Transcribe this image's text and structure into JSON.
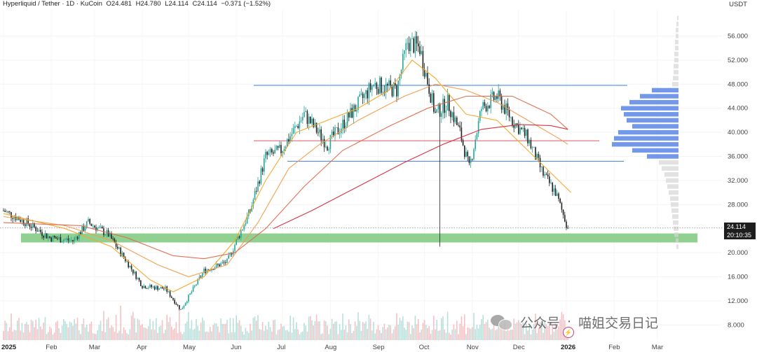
{
  "header": {
    "symbol": "Hyperliquid / Tether · 1D · KuCoin",
    "open": "O24.481",
    "high": "H24.780",
    "low": "L24.114",
    "close": "C24.114",
    "change": "−0.371 (−1.52%)"
  },
  "price_axis": {
    "unit": "USDT"
  },
  "last_price": {
    "price": "24.114",
    "countdown": "20:10:35"
  },
  "watermark": {
    "text_left": "公众号",
    "separator": "·",
    "text_right": "喵姐交易日记"
  },
  "colors": {
    "up": "#26a69a",
    "down": "#222222",
    "ma_short": "#f5a623",
    "ma_mid": "#f29b4b",
    "ma_long": "#e06a4a",
    "ma_200": "#d8283a",
    "support_zone": "#7cc97e",
    "hline_blue": "#3d7fd9",
    "hline_red": "#e8545f",
    "volume_profile": "#5b86e5"
  },
  "chart_data": {
    "type": "candlestick",
    "x_ticks": [
      "2025",
      "Feb",
      "Mar",
      "Apr",
      "May",
      "Jun",
      "Jul",
      "Aug",
      "Sep",
      "Oct",
      "Nov",
      "Dec",
      "2026",
      "Feb",
      "Mar"
    ],
    "y_ticks": [
      "56.000",
      "52.000",
      "48.000",
      "44.000",
      "40.000",
      "36.000",
      "32.000",
      "28.000",
      "24.114",
      "20.000",
      "16.000",
      "12.000",
      "8.000"
    ],
    "ylim": [
      8,
      60
    ],
    "price_path_daily_close": [
      [
        0,
        27.0
      ],
      [
        15,
        25.0
      ],
      [
        30,
        22.5
      ],
      [
        45,
        22.0
      ],
      [
        55,
        25.0
      ],
      [
        68,
        23.0
      ],
      [
        80,
        18.5
      ],
      [
        90,
        14.5
      ],
      [
        105,
        14.0
      ],
      [
        115,
        10.5
      ],
      [
        130,
        17.0
      ],
      [
        145,
        18.5
      ],
      [
        160,
        27.0
      ],
      [
        170,
        36.0
      ],
      [
        180,
        37.0
      ],
      [
        195,
        43.0
      ],
      [
        210,
        38.0
      ],
      [
        225,
        43.0
      ],
      [
        240,
        48.0
      ],
      [
        255,
        47.0
      ],
      [
        262,
        55.0
      ],
      [
        270,
        54.0
      ],
      [
        280,
        43.0
      ],
      [
        288,
        45.0
      ],
      [
        296,
        40.0
      ],
      [
        302,
        34.0
      ],
      [
        310,
        44.0
      ],
      [
        320,
        46.0
      ],
      [
        330,
        42.0
      ],
      [
        340,
        39.0
      ],
      [
        350,
        33.0
      ],
      [
        358,
        30.0
      ],
      [
        366,
        24.1
      ]
    ],
    "wick_low_oct": {
      "day": 283,
      "price": 21.0
    },
    "horizontal_levels": [
      {
        "price": 47.8,
        "color": "blue"
      },
      {
        "price": 38.6,
        "color": "red"
      },
      {
        "price": 35.2,
        "color": "blue"
      }
    ],
    "support_zone": [
      21.7,
      23.2
    ],
    "moving_averages": [
      {
        "name": "",
        "color": "ma_short",
        "points": [
          [
            0,
            26.5
          ],
          [
            40,
            24
          ],
          [
            70,
            21
          ],
          [
            95,
            15.5
          ],
          [
            110,
            13.5
          ],
          [
            130,
            16
          ],
          [
            150,
            22
          ],
          [
            170,
            32
          ],
          [
            190,
            40
          ],
          [
            210,
            42
          ],
          [
            230,
            44
          ],
          [
            250,
            47
          ],
          [
            265,
            52
          ],
          [
            280,
            49
          ],
          [
            300,
            43
          ],
          [
            320,
            42
          ],
          [
            340,
            37
          ],
          [
            360,
            32
          ],
          [
            368,
            30
          ]
        ]
      },
      {
        "name": "",
        "color": "ma_mid",
        "points": [
          [
            0,
            26
          ],
          [
            40,
            24.5
          ],
          [
            70,
            22
          ],
          [
            100,
            18
          ],
          [
            120,
            16
          ],
          [
            145,
            18
          ],
          [
            165,
            25
          ],
          [
            185,
            34
          ],
          [
            205,
            38
          ],
          [
            230,
            42
          ],
          [
            260,
            46
          ],
          [
            280,
            48
          ],
          [
            300,
            47
          ],
          [
            320,
            45
          ],
          [
            340,
            42
          ],
          [
            360,
            39
          ],
          [
            366,
            38
          ]
        ]
      },
      {
        "name": "",
        "color": "ma_long",
        "points": [
          [
            0,
            25
          ],
          [
            50,
            24.5
          ],
          [
            80,
            22.5
          ],
          [
            110,
            19.5
          ],
          [
            130,
            19
          ],
          [
            150,
            20
          ],
          [
            170,
            24
          ],
          [
            195,
            31
          ],
          [
            220,
            37
          ],
          [
            250,
            41
          ],
          [
            275,
            44
          ],
          [
            300,
            46
          ],
          [
            330,
            46
          ],
          [
            355,
            43
          ],
          [
            366,
            40.5
          ]
        ]
      },
      {
        "name": "",
        "color": "ma_200",
        "points": [
          [
            175,
            24
          ],
          [
            200,
            27
          ],
          [
            230,
            31
          ],
          [
            260,
            35
          ],
          [
            285,
            38
          ],
          [
            310,
            40.5
          ],
          [
            335,
            41.3
          ],
          [
            355,
            41.1
          ],
          [
            366,
            40.5
          ]
        ]
      }
    ],
    "volume_profile": [
      [
        59,
        2
      ],
      [
        58,
        3
      ],
      [
        57,
        4
      ],
      [
        56,
        4
      ],
      [
        55,
        5
      ],
      [
        54,
        5
      ],
      [
        53,
        6
      ],
      [
        52,
        6
      ],
      [
        51,
        7
      ],
      [
        50,
        7
      ],
      [
        49,
        8
      ],
      [
        48,
        9
      ],
      [
        47,
        38
      ],
      [
        46,
        55
      ],
      [
        45,
        70
      ],
      [
        44,
        82
      ],
      [
        43,
        78
      ],
      [
        42,
        74
      ],
      [
        41,
        66
      ],
      [
        40,
        86
      ],
      [
        39,
        92
      ],
      [
        38,
        95
      ],
      [
        37,
        66
      ],
      [
        36,
        45
      ],
      [
        35,
        28
      ],
      [
        34,
        24
      ],
      [
        33,
        20
      ],
      [
        32,
        18
      ],
      [
        31,
        16
      ],
      [
        30,
        14
      ],
      [
        29,
        12
      ],
      [
        28,
        11
      ],
      [
        27,
        10
      ],
      [
        26,
        9
      ],
      [
        25,
        8
      ],
      [
        24,
        7
      ],
      [
        23,
        6
      ],
      [
        22,
        4
      ],
      [
        21,
        3
      ]
    ]
  }
}
